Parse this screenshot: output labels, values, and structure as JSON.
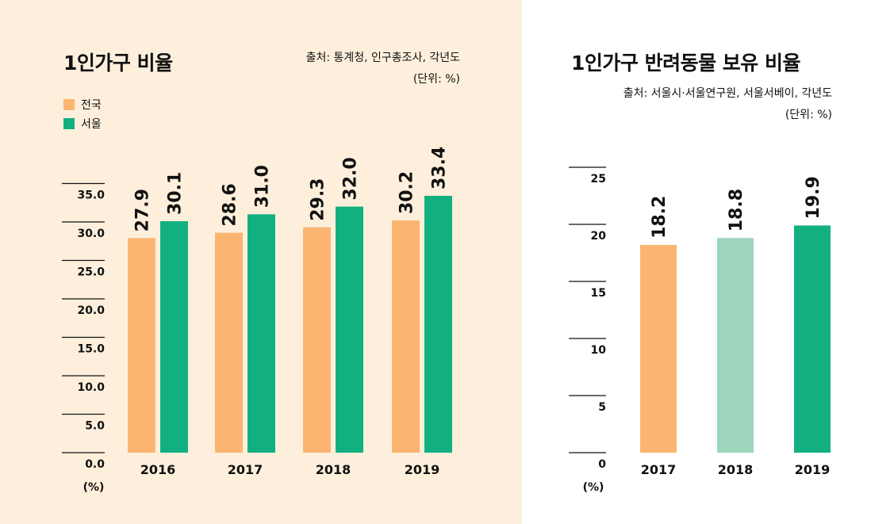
{
  "colors": {
    "left_background": "#fdefdc",
    "national": "#fbb570",
    "seoul": "#12b080",
    "light_green": "#9dd4bb"
  },
  "left_chart": {
    "title": "1인가구 비율",
    "source": "출처: 통계청, 인구총조사, 각년도",
    "unit": "(단위: %)",
    "legend": [
      "전국",
      "서울"
    ],
    "axis_unit": "(%)"
  },
  "right_chart": {
    "title": "1인가구 반려동물 보유 비율",
    "source": "출처: 서울시·서울연구원, 서울서베이, 각년도",
    "unit": "(단위: %)",
    "axis_unit": "(%)"
  },
  "chart_data": [
    {
      "type": "bar",
      "title": "1인가구 비율",
      "categories": [
        "2016",
        "2017",
        "2018",
        "2019"
      ],
      "series": [
        {
          "name": "전국",
          "values": [
            27.9,
            28.6,
            29.3,
            30.2
          ],
          "value_labels": [
            "27.9",
            "28.6",
            "29.3",
            "30.2"
          ]
        },
        {
          "name": "서울",
          "values": [
            30.1,
            31.0,
            32.0,
            33.4
          ],
          "value_labels": [
            "30.1",
            "31.0",
            "32.0",
            "33.4"
          ]
        }
      ],
      "ylim": [
        0,
        37.5
      ],
      "yticks": [
        0,
        5,
        10,
        15,
        20,
        25,
        30,
        35
      ],
      "ytick_labels": [
        "0.0",
        "5.0",
        "10.0",
        "15.0",
        "20.0",
        "25.0",
        "30.0",
        "35.0"
      ],
      "ylabel": "(%)",
      "legend": "top-left"
    },
    {
      "type": "bar",
      "title": "1인가구 반려동물 보유 비율",
      "categories": [
        "2017",
        "2018",
        "2019"
      ],
      "values": [
        18.2,
        18.8,
        19.9
      ],
      "value_labels": [
        "18.2",
        "18.8",
        "19.9"
      ],
      "ylim": [
        0,
        25
      ],
      "yticks": [
        0,
        5,
        10,
        15,
        20,
        25
      ],
      "ytick_labels": [
        "0",
        "5",
        "10",
        "15",
        "20",
        "25"
      ],
      "ylabel": "(%)"
    }
  ]
}
